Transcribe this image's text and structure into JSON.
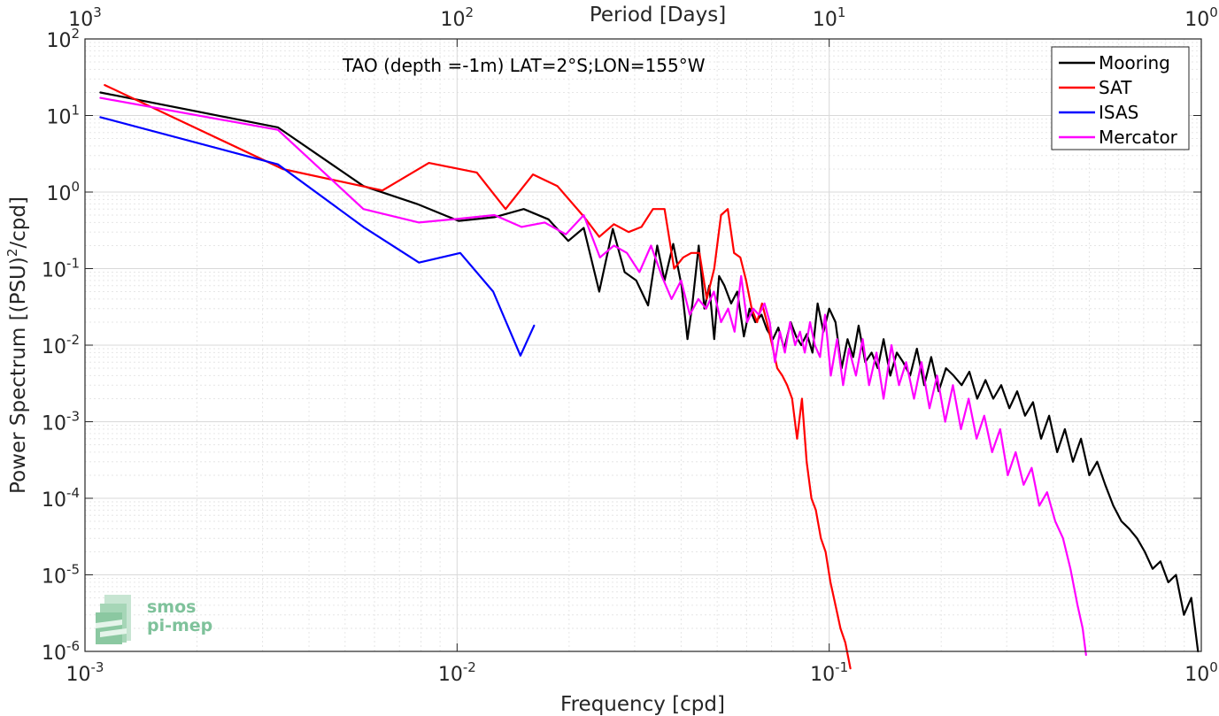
{
  "chart_data": {
    "type": "line",
    "title": "TAO (depth =-1m) LAT=2°S;LON=155°W",
    "xlabel": "Frequency [cpd]",
    "ylabel": "Power Spectrum [(PSU)",
    "ylabel_sup": "2",
    "ylabel_tail": "/cpd]",
    "top_xlabel": "Period [Days]",
    "xscale": "log",
    "yscale": "log",
    "xlim": [
      0.001,
      1
    ],
    "ylim": [
      1e-06,
      100
    ],
    "grid": true,
    "legend_position": "top-right",
    "x_ticks": [
      {
        "value": 0.001,
        "base": "10",
        "exp": "-3"
      },
      {
        "value": 0.01,
        "base": "10",
        "exp": "-2"
      },
      {
        "value": 0.1,
        "base": "10",
        "exp": "-1"
      },
      {
        "value": 1,
        "base": "10",
        "exp": "0"
      }
    ],
    "y_ticks": [
      {
        "value": 1e-06,
        "base": "10",
        "exp": "-6"
      },
      {
        "value": 1e-05,
        "base": "10",
        "exp": "-5"
      },
      {
        "value": 0.0001,
        "base": "10",
        "exp": "-4"
      },
      {
        "value": 0.001,
        "base": "10",
        "exp": "-3"
      },
      {
        "value": 0.01,
        "base": "10",
        "exp": "-2"
      },
      {
        "value": 0.1,
        "base": "10",
        "exp": "-1"
      },
      {
        "value": 1,
        "base": "10",
        "exp": "0"
      },
      {
        "value": 10,
        "base": "10",
        "exp": "1"
      },
      {
        "value": 100,
        "base": "10",
        "exp": "2"
      }
    ],
    "top_ticks": [
      {
        "value": 0.001,
        "base": "10",
        "exp": "3"
      },
      {
        "value": 0.01,
        "base": "10",
        "exp": "2"
      },
      {
        "value": 0.1,
        "base": "10",
        "exp": "1"
      },
      {
        "value": 1,
        "base": "10",
        "exp": "0"
      }
    ],
    "series": [
      {
        "name": "Mooring",
        "color": "#000000",
        "x": [
          0.0011,
          0.0033,
          0.0056,
          0.0078,
          0.0101,
          0.0126,
          0.0151,
          0.0176,
          0.0199,
          0.0219,
          0.0241,
          0.0262,
          0.0282,
          0.0303,
          0.0326,
          0.0345,
          0.0361,
          0.0381,
          0.0401,
          0.0416,
          0.0429,
          0.0446,
          0.0462,
          0.0476,
          0.0491,
          0.0506,
          0.0523,
          0.0545,
          0.0566,
          0.059,
          0.0611,
          0.0633,
          0.0658,
          0.068,
          0.0706,
          0.073,
          0.0757,
          0.0788,
          0.0815,
          0.0841,
          0.0871,
          0.0902,
          0.0931,
          0.0965,
          0.1,
          0.104,
          0.108,
          0.112,
          0.116,
          0.12,
          0.125,
          0.13,
          0.135,
          0.14,
          0.146,
          0.152,
          0.158,
          0.165,
          0.172,
          0.18,
          0.188,
          0.197,
          0.206,
          0.216,
          0.227,
          0.238,
          0.25,
          0.263,
          0.276,
          0.29,
          0.305,
          0.32,
          0.336,
          0.353,
          0.371,
          0.39,
          0.41,
          0.43,
          0.452,
          0.475,
          0.5,
          0.525,
          0.552,
          0.58,
          0.61,
          0.64,
          0.672,
          0.705,
          0.74,
          0.777,
          0.815,
          0.855,
          0.898,
          0.94,
          0.98
        ],
        "y": [
          20,
          7,
          1.2,
          0.7,
          0.42,
          0.47,
          0.6,
          0.44,
          0.23,
          0.34,
          0.05,
          0.33,
          0.09,
          0.07,
          0.033,
          0.2,
          0.07,
          0.21,
          0.06,
          0.012,
          0.035,
          0.2,
          0.03,
          0.06,
          0.012,
          0.08,
          0.06,
          0.035,
          0.05,
          0.013,
          0.03,
          0.02,
          0.025,
          0.016,
          0.012,
          0.017,
          0.009,
          0.02,
          0.013,
          0.01,
          0.014,
          0.008,
          0.035,
          0.015,
          0.03,
          0.02,
          0.005,
          0.012,
          0.007,
          0.018,
          0.006,
          0.008,
          0.005,
          0.012,
          0.004,
          0.008,
          0.006,
          0.004,
          0.009,
          0.003,
          0.007,
          0.0025,
          0.005,
          0.004,
          0.003,
          0.0045,
          0.002,
          0.0035,
          0.002,
          0.003,
          0.0015,
          0.0025,
          0.0012,
          0.0018,
          0.0006,
          0.0012,
          0.0004,
          0.0008,
          0.0003,
          0.0006,
          0.0002,
          0.0003,
          0.00015,
          8e-05,
          5e-05,
          4e-05,
          3e-05,
          2e-05,
          1.2e-05,
          1.5e-05,
          8e-06,
          1e-05,
          3e-06,
          5e-06,
          1e-06
        ]
      },
      {
        "name": "SAT",
        "color": "#ff0000",
        "x": [
          0.00113,
          0.0034,
          0.0063,
          0.0084,
          0.0113,
          0.0135,
          0.016,
          0.0186,
          0.0219,
          0.0241,
          0.0264,
          0.0289,
          0.0313,
          0.0336,
          0.0361,
          0.0383,
          0.0405,
          0.0426,
          0.0448,
          0.0469,
          0.0491,
          0.0512,
          0.0534,
          0.0555,
          0.0577,
          0.0598,
          0.0619,
          0.064,
          0.066,
          0.068,
          0.0703,
          0.0725,
          0.0748,
          0.0771,
          0.0795,
          0.082,
          0.0845,
          0.087,
          0.0896,
          0.0921,
          0.095,
          0.0978,
          0.1008,
          0.104,
          0.1072,
          0.1105,
          0.114
        ],
        "y": [
          25,
          2.0,
          1.05,
          2.4,
          1.8,
          0.6,
          1.7,
          1.2,
          0.48,
          0.26,
          0.38,
          0.3,
          0.35,
          0.6,
          0.6,
          0.1,
          0.14,
          0.16,
          0.16,
          0.04,
          0.1,
          0.5,
          0.6,
          0.16,
          0.14,
          0.07,
          0.03,
          0.02,
          0.035,
          0.02,
          0.01,
          0.005,
          0.004,
          0.003,
          0.002,
          0.0006,
          0.002,
          0.0003,
          0.0001,
          7e-05,
          3e-05,
          2e-05,
          8e-06,
          4e-06,
          2e-06,
          1.3e-06,
          6e-07
        ]
      },
      {
        "name": "ISAS",
        "color": "#0000ff",
        "x": [
          0.0011,
          0.0033,
          0.0056,
          0.0079,
          0.0102,
          0.0125,
          0.0148,
          0.0161
        ],
        "y": [
          9.5,
          2.3,
          0.35,
          0.12,
          0.16,
          0.05,
          0.0073,
          0.018
        ]
      },
      {
        "name": "Mercator",
        "color": "#ff00ff",
        "x": [
          0.0011,
          0.0033,
          0.0056,
          0.0079,
          0.0102,
          0.0126,
          0.0149,
          0.0172,
          0.0196,
          0.0219,
          0.0242,
          0.0264,
          0.0286,
          0.0309,
          0.0332,
          0.0355,
          0.0377,
          0.04,
          0.0422,
          0.0445,
          0.0467,
          0.049,
          0.0512,
          0.0535,
          0.0557,
          0.058,
          0.0602,
          0.0625,
          0.0647,
          0.067,
          0.0692,
          0.0715,
          0.0737,
          0.076,
          0.0785,
          0.081,
          0.0835,
          0.086,
          0.0888,
          0.0915,
          0.0945,
          0.0975,
          0.101,
          0.105,
          0.109,
          0.113,
          0.118,
          0.123,
          0.128,
          0.134,
          0.14,
          0.147,
          0.154,
          0.161,
          0.169,
          0.177,
          0.186,
          0.195,
          0.205,
          0.215,
          0.226,
          0.237,
          0.249,
          0.261,
          0.274,
          0.288,
          0.302,
          0.317,
          0.333,
          0.35,
          0.367,
          0.385,
          0.405,
          0.425,
          0.445,
          0.465,
          0.48,
          0.49
        ],
        "y": [
          17,
          6.5,
          0.6,
          0.4,
          0.45,
          0.5,
          0.35,
          0.4,
          0.28,
          0.5,
          0.14,
          0.2,
          0.16,
          0.09,
          0.2,
          0.08,
          0.04,
          0.07,
          0.025,
          0.04,
          0.03,
          0.05,
          0.02,
          0.03,
          0.015,
          0.08,
          0.02,
          0.03,
          0.025,
          0.035,
          0.02,
          0.006,
          0.015,
          0.008,
          0.02,
          0.01,
          0.015,
          0.008,
          0.02,
          0.01,
          0.007,
          0.025,
          0.004,
          0.012,
          0.003,
          0.009,
          0.004,
          0.012,
          0.003,
          0.008,
          0.002,
          0.01,
          0.003,
          0.006,
          0.002,
          0.006,
          0.0015,
          0.004,
          0.001,
          0.003,
          0.0008,
          0.002,
          0.0006,
          0.0012,
          0.0004,
          0.0008,
          0.0002,
          0.0004,
          0.00015,
          0.00025,
          8e-05,
          0.00012,
          5e-05,
          3e-05,
          1.2e-05,
          4e-06,
          2e-06,
          9e-07
        ]
      }
    ]
  },
  "watermark": {
    "line1": "smos",
    "line2": "pi-mep"
  }
}
